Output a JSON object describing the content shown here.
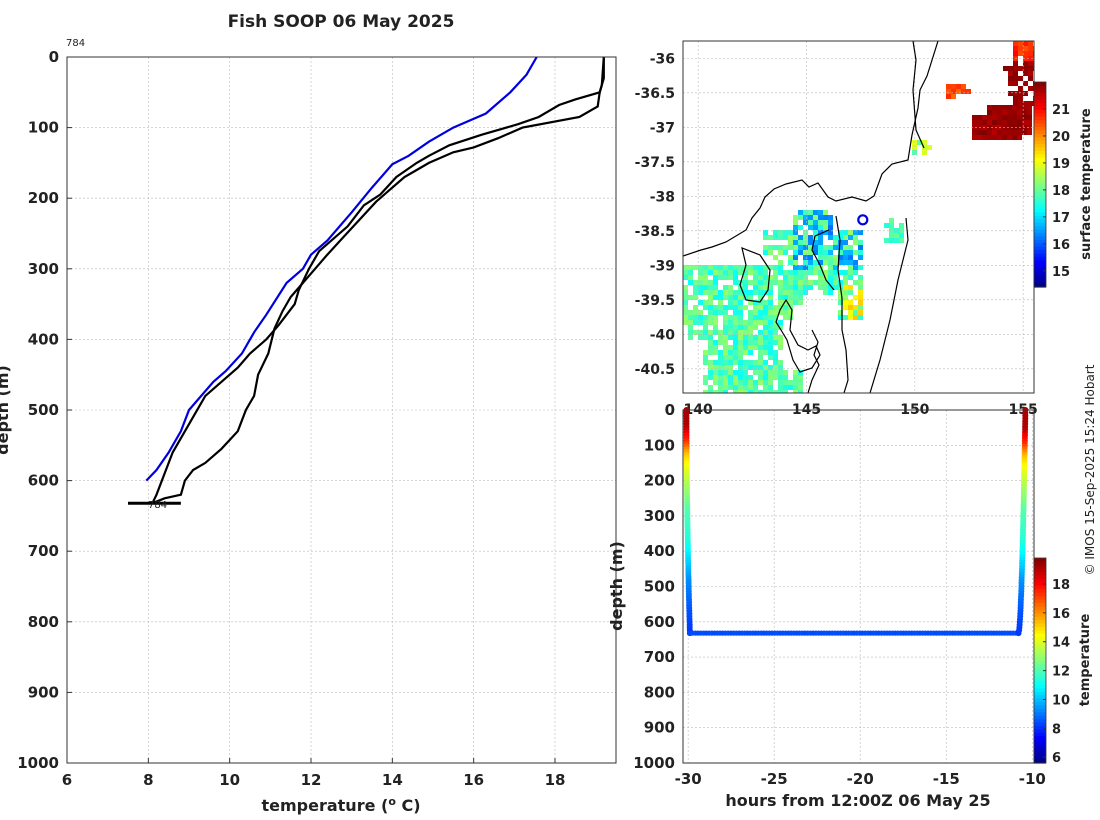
{
  "title": "Fish SOOP 06 May 2025",
  "credit": "© IMOS 15-Sep-2025 15:24 Hobart",
  "chart_data": [
    {
      "type": "line",
      "name": "profile",
      "xlabel_main": "temperature (",
      "xlabel_sup": "o",
      "xlabel_tail": " C)",
      "ylabel": "depth (m)",
      "xlim": [
        6,
        19.5
      ],
      "ylim": [
        0,
        1000
      ],
      "x_ticks": [
        6,
        8,
        10,
        12,
        14,
        16,
        18
      ],
      "y_ticks": [
        0,
        100,
        200,
        300,
        400,
        500,
        600,
        700,
        800,
        900,
        1000
      ],
      "grid": true,
      "annotations": [
        {
          "text": "784",
          "x": 6,
          "y": -20
        },
        {
          "text": "784",
          "x": 8,
          "y": 632
        }
      ],
      "series": [
        {
          "color": "#0000dd",
          "points": [
            [
              17.55,
              0
            ],
            [
              17.3,
              25
            ],
            [
              16.9,
              50
            ],
            [
              16.3,
              80
            ],
            [
              15.5,
              100
            ],
            [
              14.9,
              120
            ],
            [
              14.4,
              140
            ],
            [
              14.0,
              152
            ],
            [
              13.5,
              185
            ],
            [
              13.0,
              220
            ],
            [
              12.4,
              260
            ],
            [
              12.0,
              280
            ],
            [
              11.8,
              300
            ],
            [
              11.4,
              320
            ],
            [
              10.9,
              365
            ],
            [
              10.6,
              390
            ],
            [
              10.3,
              420
            ],
            [
              9.9,
              445
            ],
            [
              9.6,
              460
            ],
            [
              9.3,
              480
            ],
            [
              9.0,
              500
            ],
            [
              8.8,
              530
            ],
            [
              8.5,
              560
            ],
            [
              8.2,
              585
            ],
            [
              7.95,
              600
            ]
          ]
        },
        {
          "color": "#000000",
          "points": [
            [
              19.2,
              0
            ],
            [
              19.15,
              40
            ],
            [
              19.1,
              50
            ],
            [
              18.5,
              60
            ],
            [
              18.1,
              68
            ],
            [
              17.6,
              85
            ],
            [
              17.1,
              95
            ],
            [
              16.2,
              110
            ],
            [
              15.4,
              125
            ],
            [
              14.9,
              140
            ],
            [
              14.6,
              150
            ],
            [
              14.1,
              170
            ],
            [
              13.7,
              195
            ],
            [
              13.3,
              210
            ],
            [
              12.9,
              240
            ],
            [
              12.5,
              260
            ],
            [
              12.2,
              275
            ],
            [
              11.95,
              300
            ],
            [
              11.7,
              330
            ],
            [
              11.6,
              350
            ],
            [
              11.2,
              380
            ],
            [
              10.9,
              400
            ],
            [
              10.5,
              420
            ],
            [
              10.2,
              440
            ],
            [
              9.8,
              460
            ],
            [
              9.4,
              480
            ],
            [
              9.1,
              510
            ],
            [
              8.8,
              540
            ],
            [
              8.6,
              560
            ],
            [
              8.4,
              590
            ],
            [
              8.2,
              620
            ],
            [
              8.1,
              632
            ]
          ]
        },
        {
          "color": "#000000",
          "points": [
            [
              19.2,
              0
            ],
            [
              19.2,
              30
            ],
            [
              19.1,
              50
            ],
            [
              19.05,
              70
            ],
            [
              18.6,
              85
            ],
            [
              17.2,
              100
            ],
            [
              16.6,
              115
            ],
            [
              16.0,
              128
            ],
            [
              15.5,
              135
            ],
            [
              14.9,
              150
            ],
            [
              14.6,
              160
            ],
            [
              14.3,
              170
            ],
            [
              13.9,
              190
            ],
            [
              13.6,
              205
            ],
            [
              13.2,
              230
            ],
            [
              12.8,
              255
            ],
            [
              12.4,
              280
            ],
            [
              12.1,
              300
            ],
            [
              11.8,
              320
            ],
            [
              11.5,
              340
            ],
            [
              11.3,
              360
            ],
            [
              11.1,
              385
            ],
            [
              10.95,
              420
            ],
            [
              10.7,
              450
            ],
            [
              10.6,
              480
            ],
            [
              10.4,
              500
            ],
            [
              10.2,
              530
            ],
            [
              9.8,
              555
            ],
            [
              9.4,
              575
            ],
            [
              9.1,
              585
            ],
            [
              8.9,
              600
            ],
            [
              8.8,
              620
            ],
            [
              8.4,
              625
            ],
            [
              8.1,
              632
            ]
          ]
        }
      ]
    },
    {
      "type": "heatmap",
      "name": "map",
      "xlim": [
        139.3,
        155.5
      ],
      "ylim": [
        -40.85,
        -35.75
      ],
      "x_ticks": [
        "140",
        "145",
        "150",
        "155"
      ],
      "y_ticks": [
        "-36",
        "-36.5",
        "-37",
        "-37.5",
        "-38",
        "-38.5",
        "-39",
        "-39.5",
        "-40",
        "-40.5"
      ],
      "colorbar_label": "surface temperature",
      "colorbar_ticks": [
        "15",
        "16",
        "17",
        "18",
        "19",
        "20",
        "21"
      ],
      "colorbar_range": [
        14.4,
        22.0
      ],
      "marker": {
        "lon": 147.6,
        "lat": -38.34,
        "color": "#0000dd"
      }
    },
    {
      "type": "scatter",
      "name": "section",
      "xlabel": "hours from 12:00Z 06 May 25",
      "ylabel": "depth (m)",
      "xlim": [
        -30.3,
        -9.9
      ],
      "ylim": [
        0,
        1000
      ],
      "x_ticks": [
        "-30",
        "-25",
        "-20",
        "-15",
        "-10"
      ],
      "y_ticks": [
        "0",
        "100",
        "200",
        "300",
        "400",
        "500",
        "600",
        "700",
        "800",
        "900",
        "1000"
      ],
      "colorbar_label": "temperature",
      "colorbar_ticks": [
        "6",
        "8",
        "10",
        "12",
        "14",
        "16",
        "18"
      ],
      "colorbar_range": [
        5.6,
        19.8
      ],
      "descent": {
        "t_start": -30.1,
        "t_end": -29.9,
        "depth_max": 632
      },
      "bottom": {
        "t_start": -29.9,
        "t_end": -10.8,
        "depth": 632,
        "temperature": 8.4
      },
      "ascent": {
        "t_start": -10.8,
        "t_end": -10.4,
        "depth_max": 632
      }
    }
  ],
  "colormap": [
    "#00007f",
    "#0000ff",
    "#007fff",
    "#00ffff",
    "#7fff7f",
    "#ffff00",
    "#ff7f00",
    "#ff0000",
    "#7f0000"
  ]
}
